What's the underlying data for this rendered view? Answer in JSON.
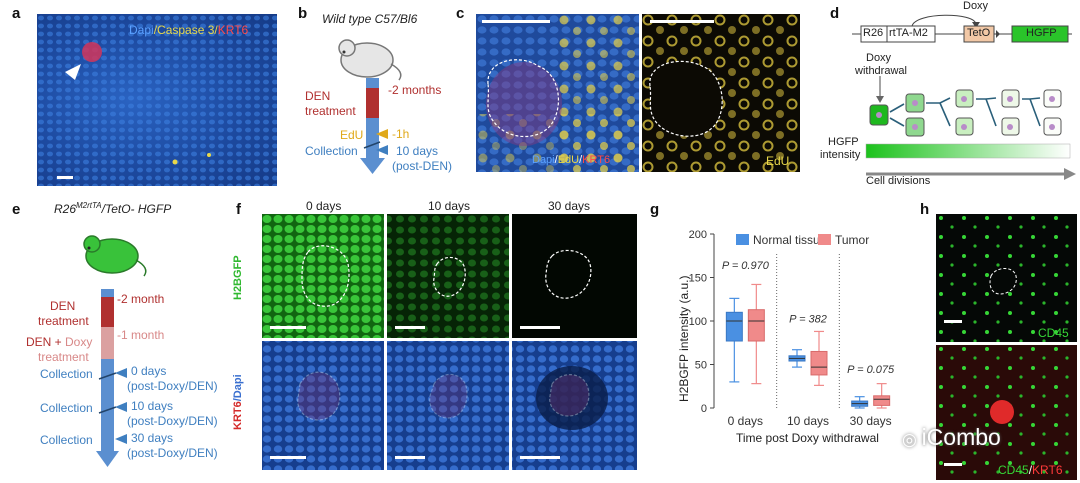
{
  "panel_letters": {
    "a": "a",
    "b": "b",
    "c": "c",
    "d": "d",
    "e": "e",
    "f": "f",
    "g": "g",
    "h": "h"
  },
  "a": {
    "stain": [
      "Dapi",
      "/",
      "Caspase 3",
      "/",
      "KRT6"
    ]
  },
  "b": {
    "strain": "Wild type C57/Bl6",
    "den": "DEN",
    "treatment": "treatment",
    "minus2": "-2 months",
    "edu": "EdU",
    "minus1h": "-1h",
    "collection": "Collection",
    "days10": "10 days",
    "postden": "(post-DEN)"
  },
  "c": {
    "stain": [
      "Dapi",
      "/",
      "EdU",
      "/",
      "KRT6"
    ],
    "edu": "EdU"
  },
  "d": {
    "r26": "R26",
    "rtta": "rtTA-M2",
    "doxy": "Doxy",
    "teto": "TetO",
    "hgfp": "HGFP",
    "withdrawal1": "Doxy",
    "withdrawal2": "withdrawal",
    "intensity1": "HGFP",
    "intensity2": "intensity",
    "divisions": "Cell divisions"
  },
  "e": {
    "title_pre": "R26",
    "title_sup": "M2rtTA",
    "title_post": "/TetO- HGFP",
    "den": "DEN",
    "treatment": "treatment",
    "minus2": "-2 month",
    "dendoxy_a": "DEN + ",
    "dendoxy_b": "Doxy",
    "treatment2": "treatment",
    "minus1": "-1 month",
    "collection": "Collection",
    "c0": "0 days",
    "c10": "10 days",
    "c30": "30 days",
    "post": "(post-Doxy/DEN)"
  },
  "f": {
    "cols": [
      "0 days",
      "10 days",
      "30 days"
    ],
    "row1": "H2BGFP",
    "row2a": "KRT6",
    "row2b": "/Dapi"
  },
  "h": {
    "top": "CD45",
    "bot_a": "CD45",
    "bot_b": "/",
    "bot_c": "KRT6"
  },
  "watermark": "iCombo",
  "colors": {
    "dapi": "#2f6bd6",
    "krt6": "#e0303a",
    "edu": "#e8d84a",
    "gfp": "#31c43a",
    "normal": "#4a90e2",
    "tumor": "#f08a8a",
    "den_bar": "#b0302f"
  },
  "chart_data": {
    "type": "box",
    "ylabel": "H2BGFP intensity (a.u.)",
    "xlabel": "Time post Doxy withdrawal",
    "ylim": [
      0,
      200
    ],
    "yticks": [
      0,
      50,
      100,
      150,
      200
    ],
    "categories": [
      "0 days",
      "10 days",
      "30 days"
    ],
    "pvalues": [
      "P = 0.970",
      "P = 382",
      "P = 0.075"
    ],
    "series": [
      {
        "name": "Normal tissue",
        "color": "#4a90e2",
        "boxes": [
          {
            "min": 30,
            "q1": 77,
            "median": 100,
            "q3": 110,
            "max": 126
          },
          {
            "min": 47,
            "q1": 54,
            "median": 57,
            "q3": 60,
            "max": 67
          },
          {
            "min": 0,
            "q1": 2,
            "median": 5,
            "q3": 8,
            "max": 13
          }
        ]
      },
      {
        "name": "Tumor",
        "color": "#f08a8a",
        "boxes": [
          {
            "min": 28,
            "q1": 77,
            "median": 100,
            "q3": 113,
            "max": 142
          },
          {
            "min": 26,
            "q1": 38,
            "median": 47,
            "q3": 65,
            "max": 88
          },
          {
            "min": 0,
            "q1": 3,
            "median": 10,
            "q3": 14,
            "max": 28
          }
        ]
      }
    ],
    "legend": "top"
  }
}
